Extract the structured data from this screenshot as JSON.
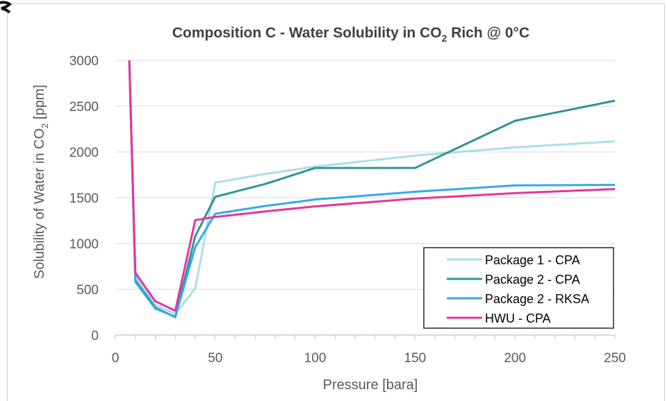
{
  "chart_data": {
    "type": "line",
    "title_main": "Composition  C - Water Solubility in CO",
    "title_sub": "2",
    "title_tail": " Rich @ 0°C",
    "xlabel": "Pressure [bara]",
    "ylabel_main": "Solubility of Water in CO",
    "ylabel_sub": "2",
    "ylabel_tail": " [ppm]",
    "xlim": [
      0,
      250
    ],
    "ylim": [
      0,
      3000
    ],
    "x_ticks": [
      0,
      50,
      100,
      150,
      200,
      250
    ],
    "y_ticks": [
      0,
      500,
      1000,
      1500,
      2000,
      2500,
      3000
    ],
    "x_tick_labels": [
      "0",
      "50",
      "100",
      "150",
      "200",
      "250"
    ],
    "y_tick_labels": [
      "0",
      "500",
      "1000",
      "1500",
      "2000",
      "2500",
      "3000"
    ],
    "grid": "horizontal",
    "legend_position": "bottom-right",
    "series": [
      {
        "name": "Package 1 - CPA",
        "color": "#a9dfe7",
        "x": [
          7,
          10,
          20,
          30,
          40,
          50,
          75,
          100,
          150,
          200,
          250
        ],
        "y": [
          3000,
          650,
          330,
          230,
          510,
          1665,
          1760,
          1840,
          1960,
          2050,
          2115
        ]
      },
      {
        "name": "Package 2 - CPA",
        "color": "#2e9494",
        "x": [
          7,
          10,
          20,
          30,
          40,
          50,
          75,
          100,
          150,
          200,
          250
        ],
        "y": [
          3000,
          600,
          300,
          195,
          1080,
          1510,
          1650,
          1825,
          1825,
          2340,
          2560
        ]
      },
      {
        "name": "Package 2 - RKSA",
        "color": "#35a8ee",
        "x": [
          7,
          10,
          20,
          30,
          40,
          50,
          75,
          100,
          150,
          200,
          250
        ],
        "y": [
          3000,
          580,
          290,
          200,
          960,
          1325,
          1410,
          1480,
          1565,
          1635,
          1640
        ]
      },
      {
        "name": "HWU - CPA",
        "color": "#e8339a",
        "x": [
          7,
          10,
          20,
          30,
          40,
          50,
          75,
          100,
          150,
          200,
          250
        ],
        "y": [
          3000,
          680,
          370,
          265,
          1255,
          1290,
          1350,
          1405,
          1490,
          1550,
          1595
        ]
      }
    ]
  }
}
